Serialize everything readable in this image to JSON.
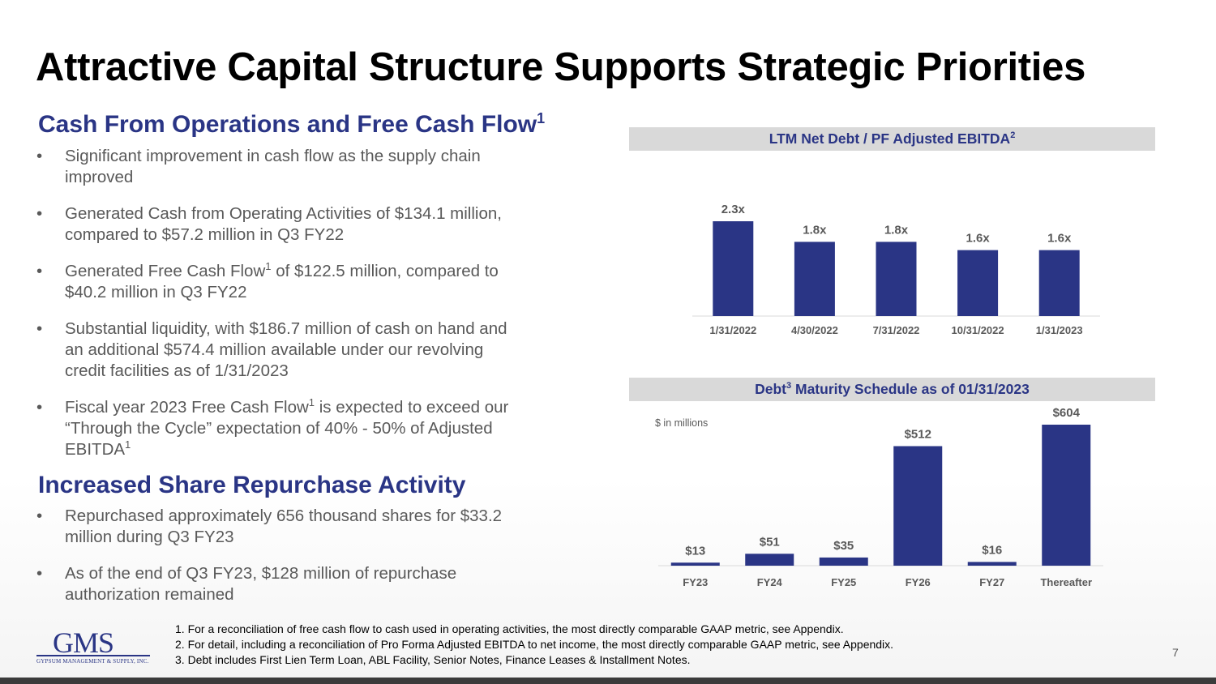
{
  "title": "Attractive Capital Structure Supports Strategic Priorities",
  "section1": {
    "heading": "Cash From Operations and Free Cash Flow",
    "heading_sup": "1",
    "bullets": [
      {
        "text": "Significant improvement in cash flow as the supply chain improved"
      },
      {
        "text": "Generated Cash from Operating Activities of $134.1 million, compared to $57.2 million in Q3 FY22"
      },
      {
        "pre": "Generated Free Cash Flow",
        "sup": "1",
        "post": " of $122.5 million, compared to $40.2 million in Q3 FY22"
      },
      {
        "text": "Substantial liquidity, with $186.7 million of cash on hand and an additional $574.4 million available under our revolving credit facilities as of 1/31/2023"
      },
      {
        "pre": "Fiscal year 2023 Free Cash Flow",
        "sup": "1",
        "post": " is expected to exceed our “Through the Cycle” expectation of 40% - 50% of Adjusted EBITDA",
        "sup2": "1"
      }
    ]
  },
  "section2": {
    "heading": "Increased Share Repurchase Activity",
    "bullets": [
      {
        "text": "Repurchased approximately 656 thousand shares for $33.2 million during Q3 FY23"
      },
      {
        "text": "As of the end of Q3 FY23, $128 million of repurchase authorization remained"
      }
    ]
  },
  "colors": {
    "bar": "#2a3585",
    "heading": "#2a3585",
    "header_bg": "#d9d9d9"
  },
  "chart_data": [
    {
      "type": "bar",
      "title": "LTM Net Debt / PF Adjusted EBITDA",
      "title_sup": "2",
      "categories": [
        "1/31/2022",
        "4/30/2022",
        "7/31/2022",
        "10/31/2022",
        "1/31/2023"
      ],
      "values": [
        2.3,
        1.8,
        1.8,
        1.6,
        1.6
      ],
      "data_labels": [
        "2.3x",
        "1.8x",
        "1.8x",
        "1.6x",
        "1.6x"
      ],
      "ylim": [
        0,
        2.3
      ],
      "xlabel": "",
      "ylabel": "",
      "grid": false
    },
    {
      "type": "bar",
      "title_pre": "Debt",
      "title_sup": "3",
      "title_post": " Maturity Schedule as of 01/31/2023",
      "unit_note": "$ in millions",
      "categories": [
        "FY23",
        "FY24",
        "FY25",
        "FY26",
        "FY27",
        "Thereafter"
      ],
      "values": [
        13,
        51,
        35,
        512,
        16,
        604
      ],
      "data_labels": [
        "$13",
        "$51",
        "$35",
        "$512",
        "$16",
        "$604"
      ],
      "ylim": [
        0,
        604
      ],
      "xlabel": "",
      "ylabel": "",
      "grid": false
    }
  ],
  "logo": {
    "letters": "GMS",
    "tagline": "GYPSUM MANAGEMENT & SUPPLY, INC."
  },
  "footnotes": [
    "1.   For a reconciliation of free cash flow to cash used in operating activities, the most directly comparable GAAP metric, see Appendix.",
    "2.   For detail, including a reconciliation of Pro Forma Adjusted EBITDA to net income, the most directly comparable GAAP metric, see Appendix.",
    "3.   Debt includes First Lien Term Loan, ABL Facility, Senior Notes, Finance Leases & Installment Notes."
  ],
  "page_number": "7"
}
